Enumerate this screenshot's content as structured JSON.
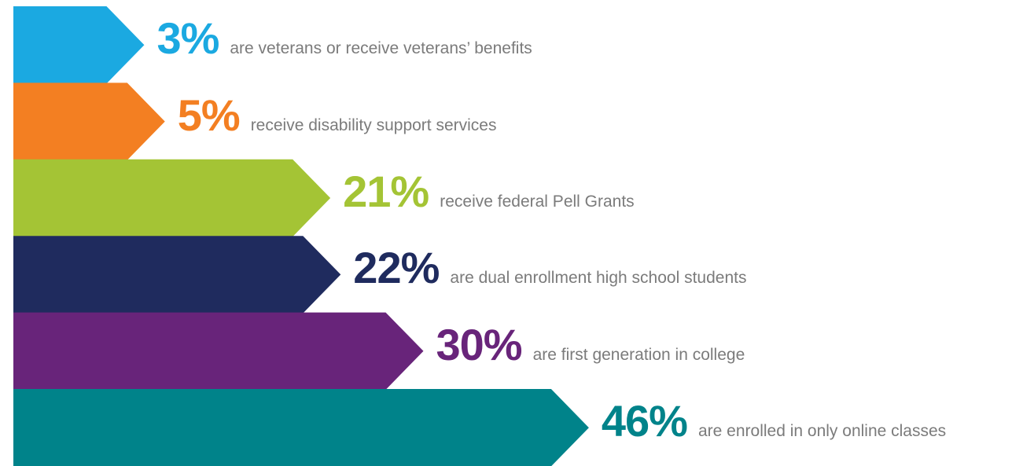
{
  "chart_data": {
    "type": "bar",
    "orientation": "horizontal",
    "categories": [
      "are veterans or receive veterans’ benefits",
      "receive disability support services",
      "receive federal Pell Grants",
      "are dual enrollment high school students",
      "are first generation in college",
      "are enrolled in only online classes"
    ],
    "values": [
      3,
      5,
      21,
      22,
      30,
      46
    ],
    "value_labels": [
      "3%",
      "5%",
      "21%",
      "22%",
      "30%",
      "46%"
    ],
    "unit": "%",
    "colors": [
      "#1ba9e1",
      "#f37f22",
      "#a4c435",
      "#1f2b5e",
      "#68247a",
      "#00838a"
    ],
    "description_color": "#7b7b7b",
    "title": "",
    "xlabel": "",
    "ylabel": "",
    "grid": false,
    "legend": "none"
  }
}
